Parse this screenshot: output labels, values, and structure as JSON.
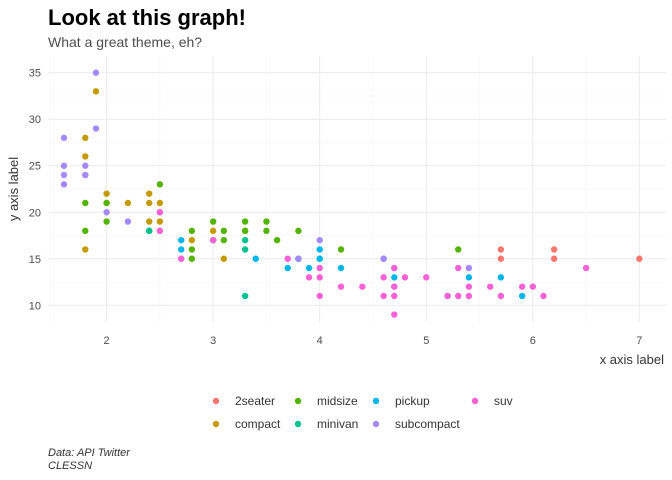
{
  "chart_data": {
    "type": "scatter",
    "title": "Look at this graph!",
    "subtitle": "What a great theme, eh?",
    "xlabel": "x axis label",
    "ylabel": "y axis label",
    "xlim": [
      1.45,
      7.25
    ],
    "ylim": [
      8.2,
      36.8
    ],
    "xticks": [
      2,
      3,
      4,
      5,
      6,
      7
    ],
    "yticks": [
      10,
      15,
      20,
      25,
      30,
      35
    ],
    "grid": true,
    "legend": {
      "placement": "bottom",
      "entries": [
        "2seater",
        "compact",
        "midsize",
        "minivan",
        "pickup",
        "subcompact",
        "suv"
      ]
    },
    "colors": {
      "2seater": "#F8766D",
      "compact": "#C49A00",
      "midsize": "#53B400",
      "minivan": "#00C094",
      "pickup": "#00B6EB",
      "subcompact": "#A58AFF",
      "suv": "#FB61D7"
    },
    "series": [
      {
        "name": "2seater",
        "points": [
          [
            5.7,
            16
          ],
          [
            5.7,
            15
          ],
          [
            6.2,
            16
          ],
          [
            6.2,
            15
          ],
          [
            7.0,
            15
          ]
        ]
      },
      {
        "name": "compact",
        "points": [
          [
            1.8,
            24
          ],
          [
            1.8,
            26
          ],
          [
            1.8,
            28
          ],
          [
            1.8,
            16
          ],
          [
            1.9,
            33
          ],
          [
            2.0,
            22
          ],
          [
            2.0,
            21
          ],
          [
            2.2,
            21
          ],
          [
            2.4,
            22
          ],
          [
            2.4,
            21
          ],
          [
            2.4,
            19
          ],
          [
            2.5,
            21
          ],
          [
            2.5,
            19
          ],
          [
            2.8,
            17
          ],
          [
            3.0,
            18
          ],
          [
            3.1,
            15
          ],
          [
            3.3,
            18
          ]
        ]
      },
      {
        "name": "midsize",
        "points": [
          [
            1.8,
            18
          ],
          [
            1.8,
            21
          ],
          [
            2.0,
            21
          ],
          [
            2.0,
            19
          ],
          [
            2.4,
            18
          ],
          [
            2.5,
            23
          ],
          [
            2.5,
            18
          ],
          [
            2.8,
            18
          ],
          [
            2.8,
            16
          ],
          [
            2.8,
            15
          ],
          [
            3.0,
            19
          ],
          [
            3.0,
            17
          ],
          [
            3.1,
            18
          ],
          [
            3.1,
            17
          ],
          [
            3.3,
            19
          ],
          [
            3.3,
            18
          ],
          [
            3.5,
            19
          ],
          [
            3.5,
            18
          ],
          [
            3.6,
            17
          ],
          [
            3.8,
            18
          ],
          [
            3.8,
            15
          ],
          [
            4.2,
            16
          ],
          [
            5.3,
            16
          ]
        ]
      },
      {
        "name": "minivan",
        "points": [
          [
            2.4,
            18
          ],
          [
            3.0,
            17
          ],
          [
            3.3,
            17
          ],
          [
            3.3,
            16
          ],
          [
            3.3,
            11
          ],
          [
            3.8,
            15
          ],
          [
            4.0,
            15
          ]
        ]
      },
      {
        "name": "pickup",
        "points": [
          [
            2.7,
            17
          ],
          [
            2.7,
            16
          ],
          [
            2.7,
            15
          ],
          [
            3.4,
            15
          ],
          [
            3.7,
            14
          ],
          [
            3.9,
            14
          ],
          [
            4.0,
            15
          ],
          [
            4.0,
            16
          ],
          [
            4.2,
            14
          ],
          [
            4.6,
            15
          ],
          [
            4.7,
            13
          ],
          [
            4.7,
            14
          ],
          [
            4.7,
            12
          ],
          [
            5.2,
            11
          ],
          [
            5.4,
            13
          ],
          [
            5.7,
            13
          ],
          [
            5.9,
            11
          ]
        ]
      },
      {
        "name": "subcompact",
        "points": [
          [
            1.6,
            28
          ],
          [
            1.6,
            25
          ],
          [
            1.6,
            24
          ],
          [
            1.6,
            23
          ],
          [
            1.8,
            25
          ],
          [
            1.8,
            24
          ],
          [
            1.9,
            35
          ],
          [
            1.9,
            29
          ],
          [
            2.0,
            20
          ],
          [
            2.2,
            19
          ],
          [
            2.5,
            20
          ],
          [
            3.8,
            15
          ],
          [
            4.0,
            17
          ],
          [
            4.6,
            15
          ],
          [
            5.4,
            14
          ]
        ]
      },
      {
        "name": "suv",
        "points": [
          [
            2.5,
            18
          ],
          [
            2.5,
            20
          ],
          [
            2.7,
            15
          ],
          [
            3.0,
            17
          ],
          [
            3.7,
            15
          ],
          [
            3.9,
            13
          ],
          [
            4.0,
            14
          ],
          [
            4.0,
            13
          ],
          [
            4.0,
            11
          ],
          [
            4.2,
            12
          ],
          [
            4.4,
            12
          ],
          [
            4.6,
            13
          ],
          [
            4.6,
            11
          ],
          [
            4.7,
            14
          ],
          [
            4.7,
            12
          ],
          [
            4.7,
            11
          ],
          [
            4.7,
            9
          ],
          [
            4.8,
            13
          ],
          [
            5.0,
            13
          ],
          [
            5.2,
            11
          ],
          [
            5.3,
            14
          ],
          [
            5.3,
            11
          ],
          [
            5.4,
            12
          ],
          [
            5.4,
            11
          ],
          [
            5.6,
            12
          ],
          [
            5.7,
            11
          ],
          [
            5.9,
            12
          ],
          [
            6.0,
            12
          ],
          [
            6.1,
            11
          ],
          [
            6.5,
            14
          ]
        ]
      }
    ]
  },
  "caption": {
    "line1": "Data: API Twitter",
    "line2": "CLESSN"
  }
}
